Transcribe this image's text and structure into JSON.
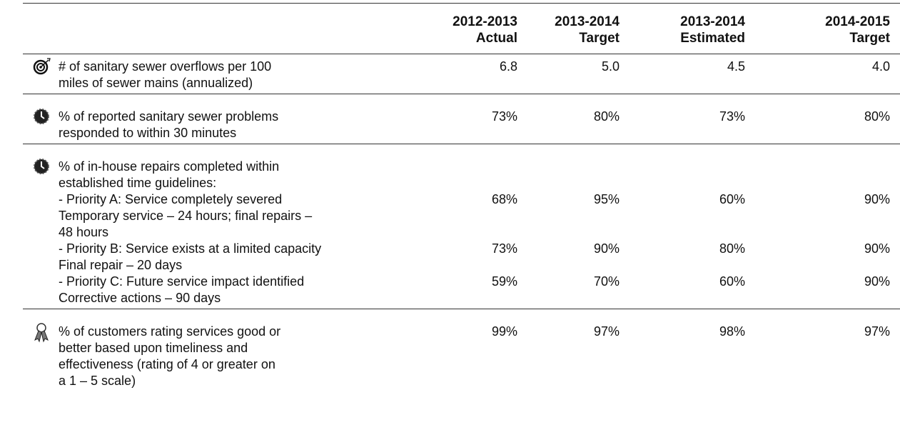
{
  "table": {
    "columns": [
      {
        "period": "2012-2013",
        "label": "Actual"
      },
      {
        "period": "2013-2014",
        "label": "Target"
      },
      {
        "period": "2013-2014",
        "label": "Estimated"
      },
      {
        "period": "2014-2015",
        "label": "Target"
      }
    ],
    "rows": [
      {
        "lines": [
          "# of sanitary sewer overflows per 100",
          "miles of sewer mains (annualized)"
        ],
        "values": [
          "6.8",
          "5.0",
          "4.5",
          "4.0"
        ]
      },
      {
        "lines": [
          "% of reported sanitary sewer problems",
          "responded to within 30 minutes"
        ],
        "values": [
          "73%",
          "80%",
          "73%",
          "80%"
        ]
      },
      {
        "lines": [
          "% of in-house repairs completed within",
          "established time guidelines:"
        ],
        "items": [
          {
            "lines": [
              "- Priority A:  Service completely severed",
              "Temporary service – 24 hours; final repairs –",
              "48 hours"
            ],
            "values": [
              "68%",
              "95%",
              "60%",
              "90%"
            ]
          },
          {
            "lines": [
              "- Priority B:  Service exists at a limited capacity",
              "Final repair – 20 days"
            ],
            "values": [
              "73%",
              "90%",
              "80%",
              "90%"
            ]
          },
          {
            "lines": [
              "- Priority C:  Future service impact identified",
              "Corrective actions – 90 days"
            ],
            "values": [
              "59%",
              "70%",
              "60%",
              "90%"
            ]
          }
        ]
      },
      {
        "lines": [
          "% of customers rating services good or",
          "better based upon timeliness and",
          "effectiveness (rating of 4 or greater on",
          "a 1 – 5 scale)"
        ],
        "values": [
          "99%",
          "97%",
          "98%",
          "97%"
        ]
      }
    ]
  }
}
